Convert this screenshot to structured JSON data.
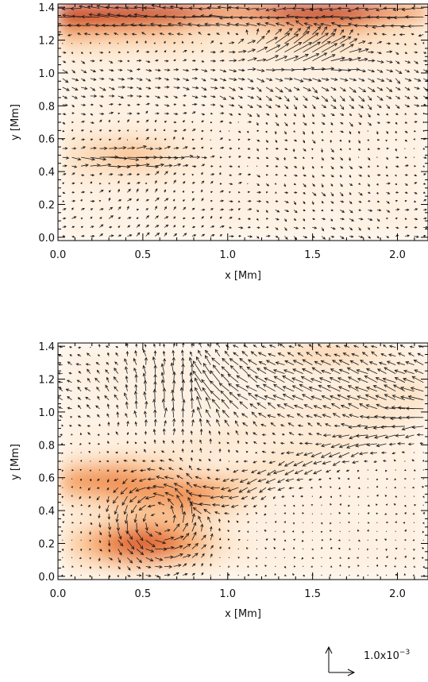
{
  "chart_data": [
    {
      "type": "heatmap",
      "title": "",
      "xlabel": "x [Mm]",
      "ylabel": "y [Mm]",
      "xlim": [
        0.0,
        2.18
      ],
      "ylim": [
        -0.02,
        1.42
      ],
      "xticks": [
        "0.0",
        "0.5",
        "1.0",
        "1.5",
        "2.0"
      ],
      "xtick_values": [
        0.0,
        0.5,
        1.0,
        1.5,
        2.0
      ],
      "yticks": [
        "0.0",
        "0.2",
        "0.4",
        "0.6",
        "0.8",
        "1.0",
        "1.2",
        "1.4"
      ],
      "ytick_values": [
        0.0,
        0.2,
        0.4,
        0.6,
        0.8,
        1.0,
        1.2,
        1.4
      ],
      "colormap": [
        "#ffffff",
        "#fde2c4",
        "#f6a35e",
        "#e4662a",
        "#c0300e"
      ],
      "overlay": "velocity vector field",
      "grid": false,
      "hotspots": [
        {
          "x": 0.55,
          "y": 1.38,
          "intensity": 0.75
        },
        {
          "x": 1.55,
          "y": 1.38,
          "intensity": 1.0
        },
        {
          "x": 0.05,
          "y": 1.35,
          "intensity": 0.8
        },
        {
          "x": 0.4,
          "y": 0.5,
          "intensity": 0.35
        }
      ]
    },
    {
      "type": "heatmap",
      "title": "",
      "xlabel": "x [Mm]",
      "ylabel": "y [Mm]",
      "xlim": [
        0.0,
        2.18
      ],
      "ylim": [
        -0.02,
        1.42
      ],
      "xticks": [
        "0.0",
        "0.5",
        "1.0",
        "1.5",
        "2.0"
      ],
      "xtick_values": [
        0.0,
        0.5,
        1.0,
        1.5,
        2.0
      ],
      "yticks": [
        "0.0",
        "0.2",
        "0.4",
        "0.6",
        "0.8",
        "1.0",
        "1.2",
        "1.4"
      ],
      "ytick_values": [
        0.0,
        0.2,
        0.4,
        0.6,
        0.8,
        1.0,
        1.2,
        1.4
      ],
      "colormap": [
        "#ffffff",
        "#fde2c4",
        "#f6a35e",
        "#e4662a",
        "#c0300e"
      ],
      "overlay": "velocity vector field",
      "grid": false,
      "hotspots": [
        {
          "x": 0.5,
          "y": 0.2,
          "intensity": 1.0
        },
        {
          "x": 0.7,
          "y": 0.5,
          "intensity": 0.55
        },
        {
          "x": 0.25,
          "y": 0.58,
          "intensity": 0.5
        },
        {
          "x": 1.6,
          "y": 1.4,
          "intensity": 0.3
        }
      ]
    }
  ],
  "reference_vector": {
    "label": "1.0x10",
    "exponent": "−3"
  }
}
